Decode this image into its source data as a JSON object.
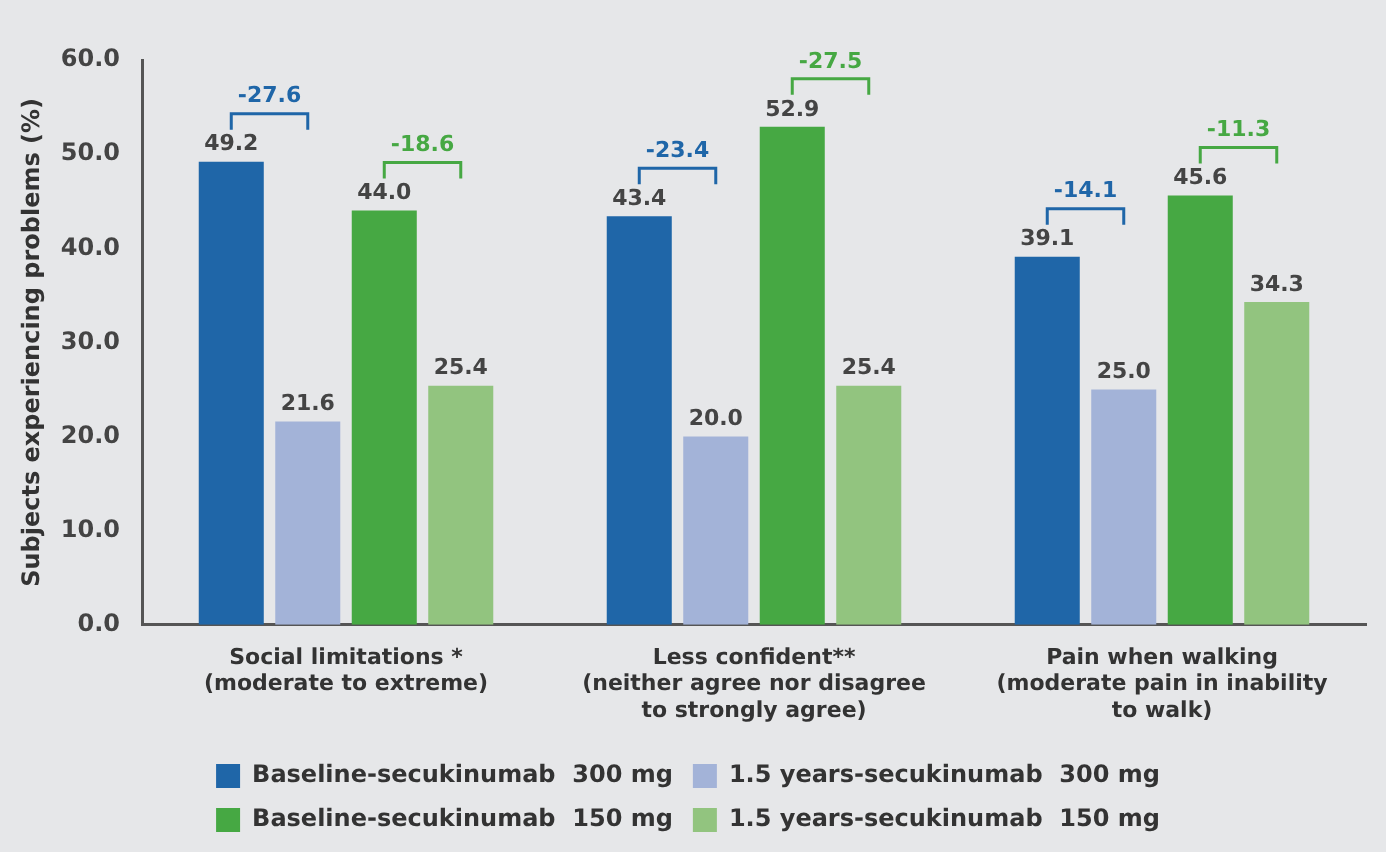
{
  "chart_data": {
    "type": "bar",
    "ylabel": "Subjects experiencing problems (%)",
    "categories": [
      "Social limitations *\n(moderate to extreme)",
      "Less confident**\n(neither agree nor disagree\nto strongly agree)",
      "Pain when walking\n(moderate pain in inability\nto walk)"
    ],
    "series": [
      {
        "name": "Baseline-secukinumab  300 mg",
        "color": "#1f66a8",
        "values": [
          49.2,
          43.4,
          39.1
        ],
        "value_labels": [
          "49.2",
          "43.4",
          "39.1"
        ]
      },
      {
        "name": "1.5 years-secukinumab  300 mg",
        "color": "#a3b3d8",
        "values": [
          21.6,
          20,
          25
        ],
        "value_labels": [
          "21.6",
          "20.0",
          "25.0"
        ]
      },
      {
        "name": "Baseline-secukinumab  150 mg",
        "color": "#46a843",
        "values": [
          44,
          52.9,
          45.6
        ],
        "value_labels": [
          "44.0",
          "52.9",
          "45.6"
        ]
      },
      {
        "name": "1.5 years-secukinumab  150 mg",
        "color": "#92c47f",
        "values": [
          25.4,
          25.4,
          34.3
        ],
        "value_labels": [
          "25.4",
          "25.4",
          "34.3"
        ]
      }
    ],
    "annotations": [
      "-27.6",
      "-18.6",
      "-23.4",
      "-27.5",
      "-14.1",
      "-11.3"
    ],
    "ylim": [
      0,
      60
    ],
    "yticks": [
      {
        "value": 0,
        "label": "0.0"
      },
      {
        "value": 10,
        "label": "10.0"
      },
      {
        "value": 20,
        "label": "20.0"
      },
      {
        "value": 30,
        "label": "30.0"
      },
      {
        "value": 40,
        "label": "40.0"
      },
      {
        "value": 50,
        "label": "50.0"
      },
      {
        "value": 60,
        "label": "60.0"
      }
    ],
    "legend": "bottom",
    "grid": false
  }
}
